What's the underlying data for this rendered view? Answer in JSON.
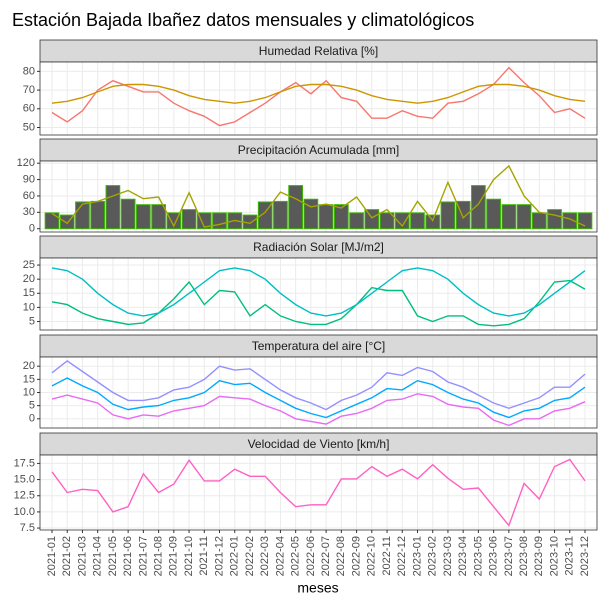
{
  "title": "Estación Bajada Ibañez datos mensuales y climatológicos",
  "xlabel": "meses",
  "chart_data": [
    {
      "type": "line",
      "title": "Humedad Relativa [%]",
      "categories": [
        "2021-01",
        "2021-02",
        "2021-03",
        "2021-04",
        "2021-05",
        "2021-06",
        "2021-07",
        "2021-08",
        "2021-09",
        "2021-10",
        "2021-11",
        "2021-12",
        "2022-01",
        "2022-02",
        "2022-03",
        "2022-04",
        "2022-05",
        "2022-06",
        "2022-07",
        "2022-08",
        "2022-09",
        "2022-10",
        "2022-11",
        "2022-12",
        "2023-01",
        "2023-02",
        "2023-03",
        "2023-04",
        "2023-05",
        "2023-06",
        "2023-07",
        "2023-08",
        "2023-09",
        "2023-10",
        "2023-11",
        "2023-12"
      ],
      "ylim": [
        46,
        85
      ],
      "yticks": [
        50,
        60,
        70,
        80
      ],
      "grid": true,
      "series": [
        {
          "color": "#F8766D",
          "values": [
            58,
            53,
            59,
            70,
            75,
            72,
            69,
            69,
            63,
            59,
            56,
            51,
            53,
            58,
            63,
            69,
            74,
            68,
            75,
            66,
            64,
            55,
            55,
            59,
            56,
            55,
            63,
            64,
            68,
            73,
            82,
            74,
            67,
            58,
            60,
            55
          ]
        },
        {
          "color": "#CD9600",
          "values": [
            63,
            64,
            66,
            69,
            72,
            73,
            73,
            72,
            70,
            67,
            65,
            64,
            63,
            64,
            66,
            69,
            72,
            73,
            73,
            72,
            70,
            67,
            65,
            64,
            63,
            64,
            66,
            69,
            72,
            73,
            73,
            72,
            70,
            67,
            65,
            64
          ]
        }
      ]
    },
    {
      "type": "line",
      "title": "Precipitación Acumulada [mm]",
      "categories": [
        "2021-01",
        "2021-02",
        "2021-03",
        "2021-04",
        "2021-05",
        "2021-06",
        "2021-07",
        "2021-08",
        "2021-09",
        "2021-10",
        "2021-11",
        "2021-12",
        "2022-01",
        "2022-02",
        "2022-03",
        "2022-04",
        "2022-05",
        "2022-06",
        "2022-07",
        "2022-08",
        "2022-09",
        "2022-10",
        "2022-11",
        "2022-12",
        "2023-01",
        "2023-02",
        "2023-03",
        "2023-04",
        "2023-05",
        "2023-06",
        "2023-07",
        "2023-08",
        "2023-09",
        "2023-10",
        "2023-11",
        "2023-12"
      ],
      "ylim": [
        -6,
        124
      ],
      "yticks": [
        0,
        30,
        60,
        90,
        120
      ],
      "grid": true,
      "series": [
        {
          "type": "bar",
          "color": "#595959",
          "edge_color": "#39B600",
          "values": [
            29,
            25,
            49,
            50,
            79,
            54,
            44,
            44,
            29,
            35,
            29,
            29,
            29,
            25,
            49,
            50,
            79,
            54,
            44,
            44,
            29,
            35,
            29,
            29,
            29,
            25,
            49,
            50,
            79,
            54,
            44,
            44,
            29,
            35,
            29,
            29
          ]
        },
        {
          "color": "#A3A500",
          "values": [
            28,
            10,
            45,
            50,
            60,
            70,
            55,
            58,
            5,
            66,
            3,
            8,
            15,
            10,
            30,
            67,
            55,
            40,
            45,
            38,
            58,
            20,
            35,
            5,
            50,
            15,
            85,
            20,
            45,
            90,
            115,
            60,
            30,
            25,
            18,
            5
          ]
        }
      ]
    },
    {
      "type": "line",
      "title": "Radiación Solar [MJ/m2]",
      "categories": [
        "2021-01",
        "2021-02",
        "2021-03",
        "2021-04",
        "2021-05",
        "2021-06",
        "2021-07",
        "2021-08",
        "2021-09",
        "2021-10",
        "2021-11",
        "2021-12",
        "2022-01",
        "2022-02",
        "2022-03",
        "2022-04",
        "2022-05",
        "2022-06",
        "2022-07",
        "2022-08",
        "2022-09",
        "2022-10",
        "2022-11",
        "2022-12",
        "2023-01",
        "2023-02",
        "2023-03",
        "2023-04",
        "2023-05",
        "2023-06",
        "2023-07",
        "2023-08",
        "2023-09",
        "2023-10",
        "2023-11",
        "2023-12"
      ],
      "ylim": [
        2,
        27.5
      ],
      "yticks": [
        5,
        10,
        15,
        20,
        25
      ],
      "grid": true,
      "series": [
        {
          "color": "#00BF7D",
          "values": [
            12,
            11,
            8,
            6,
            5,
            4,
            4.5,
            8,
            13,
            19,
            11,
            16,
            15.5,
            7,
            11,
            7,
            5,
            4,
            4,
            6,
            11,
            17,
            16,
            16,
            7,
            5,
            7,
            7,
            4,
            3.5,
            4,
            6,
            12,
            19,
            19.5,
            16.5
          ]
        },
        {
          "color": "#00BFC4",
          "values": [
            24,
            23,
            20,
            15,
            11,
            8,
            7,
            8,
            11,
            15,
            19,
            23,
            24,
            23,
            20,
            15,
            11,
            8,
            7,
            8,
            11,
            15,
            19,
            23,
            24,
            23,
            20,
            15,
            11,
            8,
            7,
            8,
            11,
            15,
            19,
            23
          ]
        }
      ]
    },
    {
      "type": "line",
      "title": "Temperatura del aire [°C]",
      "categories": [
        "2021-01",
        "2021-02",
        "2021-03",
        "2021-04",
        "2021-05",
        "2021-06",
        "2021-07",
        "2021-08",
        "2021-09",
        "2021-10",
        "2021-11",
        "2021-12",
        "2022-01",
        "2022-02",
        "2022-03",
        "2022-04",
        "2022-05",
        "2022-06",
        "2022-07",
        "2022-08",
        "2022-09",
        "2022-10",
        "2022-11",
        "2022-12",
        "2023-01",
        "2023-02",
        "2023-03",
        "2023-04",
        "2023-05",
        "2023-06",
        "2023-07",
        "2023-08",
        "2023-09",
        "2023-10",
        "2023-11",
        "2023-12"
      ],
      "ylim": [
        -3.5,
        23.5
      ],
      "yticks": [
        0,
        5,
        10,
        15,
        20
      ],
      "grid": true,
      "series": [
        {
          "color": "#9590FF",
          "values": [
            17.5,
            22,
            18,
            14,
            10,
            7,
            7,
            8,
            11,
            12,
            15,
            20,
            18.5,
            19,
            15,
            11,
            8,
            6,
            3.5,
            7,
            9,
            12,
            17.5,
            16.5,
            19.5,
            18,
            14,
            12,
            9,
            6,
            4,
            6,
            8,
            12,
            12,
            17
          ]
        },
        {
          "color": "#00A9FF",
          "values": [
            12.5,
            15.5,
            12.5,
            10,
            5.5,
            3.5,
            4.5,
            5,
            7,
            8,
            10,
            14.5,
            13,
            13.5,
            10,
            7,
            4,
            2,
            0.5,
            3,
            5.5,
            8,
            11.5,
            11,
            14.5,
            13,
            10,
            7.5,
            6,
            2.5,
            0.5,
            3,
            4,
            7,
            8,
            12
          ]
        },
        {
          "color": "#E76BF3",
          "values": [
            7.5,
            9,
            7.5,
            6,
            1.5,
            0,
            1.5,
            1,
            3,
            4,
            5,
            8.5,
            8,
            7.5,
            5,
            3,
            0,
            -1,
            -2,
            1,
            2,
            4,
            7,
            7.5,
            9.5,
            8.5,
            5.5,
            4.5,
            4,
            -0.5,
            -2.5,
            0,
            0,
            3,
            4,
            6.5
          ]
        }
      ]
    },
    {
      "type": "line",
      "title": "Velocidad de Viento [km/h]",
      "categories": [
        "2021-01",
        "2021-02",
        "2021-03",
        "2021-04",
        "2021-05",
        "2021-06",
        "2021-07",
        "2021-08",
        "2021-09",
        "2021-10",
        "2021-11",
        "2021-12",
        "2022-01",
        "2022-02",
        "2022-03",
        "2022-04",
        "2022-05",
        "2022-06",
        "2022-07",
        "2022-08",
        "2022-09",
        "2022-10",
        "2022-11",
        "2022-12",
        "2023-01",
        "2023-02",
        "2023-03",
        "2023-04",
        "2023-05",
        "2023-06",
        "2023-07",
        "2023-08",
        "2023-09",
        "2023-10",
        "2023-11",
        "2023-12"
      ],
      "ylim": [
        7.2,
        18.8
      ],
      "yticks": [
        7.5,
        {
          "value": 10,
          "label": "10.0"
        },
        12.5,
        {
          "value": 15,
          "label": "15.0"
        },
        17.5
      ],
      "grid": true,
      "series": [
        {
          "color": "#FF61C3",
          "values": [
            16.2,
            13,
            13.5,
            13.3,
            10,
            10.8,
            15.9,
            13,
            14.3,
            18,
            14.8,
            14.8,
            16.6,
            15.5,
            15.5,
            13,
            10.8,
            11.1,
            11.1,
            15.1,
            15.1,
            17,
            15.5,
            16.6,
            15.1,
            17.3,
            15.2,
            13.5,
            13.7,
            10.8,
            7.9,
            14.4,
            12,
            17,
            18.1,
            14.8
          ]
        }
      ]
    }
  ]
}
